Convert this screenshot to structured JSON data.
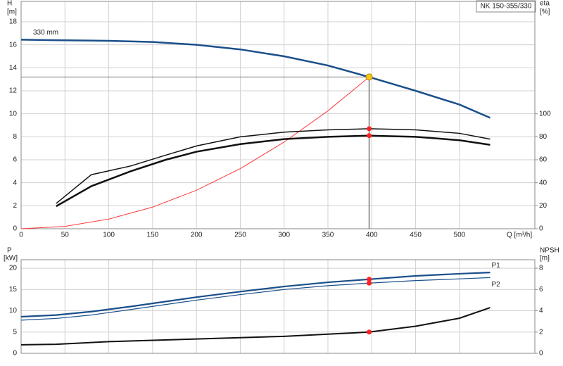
{
  "chart_data": [
    {
      "type": "line",
      "title": "NK 150-355/330",
      "xlabel": "Q [m³/h]",
      "ylabel": "H",
      "yunit": "[m]",
      "y2label": "eta",
      "y2unit": "[%]",
      "xlim": [
        0,
        586
      ],
      "xticks": [
        0,
        50,
        100,
        150,
        200,
        250,
        300,
        350,
        400,
        450,
        500
      ],
      "ylim": [
        0,
        18
      ],
      "yticks": [
        0,
        2,
        4,
        6,
        8,
        10,
        12,
        14,
        16,
        18
      ],
      "y2lim": [
        0,
        180
      ],
      "y2ticks": [
        0,
        20,
        40,
        60,
        80,
        100
      ],
      "grid": true,
      "duty_x": 397,
      "duty_color": "#f5c518",
      "series": [
        {
          "name": "330 mm",
          "color": "#1a4f8a",
          "width": 2.5,
          "x": [
            0,
            40,
            100,
            150,
            200,
            250,
            300,
            350,
            397,
            450,
            500,
            535
          ],
          "values": [
            16.45,
            16.4,
            16.35,
            16.25,
            16.0,
            15.6,
            15.0,
            14.2,
            13.2,
            12.0,
            10.8,
            9.65
          ],
          "duty_value": 13.2
        },
        {
          "color": "#ff3a3a",
          "width": 1,
          "x": [
            0,
            50,
            100,
            150,
            200,
            250,
            300,
            350,
            397
          ],
          "values": [
            0,
            0.21,
            0.84,
            1.88,
            3.35,
            5.23,
            7.54,
            10.26,
            13.2
          ]
        },
        {
          "color": "#111111",
          "width": 1.5,
          "axis": "y2",
          "x": [
            40,
            80,
            125,
            165,
            200,
            250,
            300,
            350,
            397,
            450,
            500,
            535
          ],
          "values": [
            22,
            47,
            54.6,
            64,
            72,
            80,
            84,
            86,
            87,
            86,
            83,
            78
          ],
          "duty_value": 87,
          "duty_color": "#ff2020"
        },
        {
          "color": "#111111",
          "width": 2.5,
          "axis": "y2",
          "x": [
            40,
            80,
            125,
            165,
            200,
            250,
            300,
            350,
            397,
            450,
            500,
            535
          ],
          "values": [
            19.6,
            37,
            50,
            60,
            67,
            73.6,
            78,
            80,
            81,
            80,
            77,
            73
          ],
          "duty_value": 81,
          "duty_color": "#ff2020"
        }
      ]
    },
    {
      "type": "line",
      "ylabel": "P",
      "yunit": "[kW]",
      "y2label": "NPSH",
      "y2unit": "[m]",
      "xlim": [
        0,
        586
      ],
      "ylim": [
        0,
        22
      ],
      "yticks": [
        0,
        5,
        10,
        15,
        20
      ],
      "y2lim": [
        0,
        8.8
      ],
      "y2ticks": [
        0,
        2,
        4,
        6,
        8
      ],
      "grid": true,
      "duty_x": 397,
      "series": [
        {
          "name": "P1",
          "color": "#1a4f8a",
          "width": 2.2,
          "x": [
            0,
            40,
            80,
            125,
            200,
            250,
            300,
            350,
            397,
            450,
            500,
            535
          ],
          "values": [
            8.6,
            9.0,
            9.8,
            11.0,
            13.2,
            14.5,
            15.7,
            16.7,
            17.4,
            18.2,
            18.7,
            19.0
          ],
          "duty_value": 17.4,
          "duty_color": "#ff2020"
        },
        {
          "name": "P2",
          "color": "#1a4f8a",
          "width": 1.2,
          "x": [
            0,
            40,
            80,
            125,
            200,
            250,
            300,
            350,
            397,
            450,
            500,
            535
          ],
          "values": [
            7.8,
            8.2,
            9.0,
            10.3,
            12.5,
            13.8,
            15.0,
            15.9,
            16.5,
            17.1,
            17.5,
            17.8
          ],
          "duty_value": 16.5,
          "duty_color": "#ff2020"
        },
        {
          "color": "#111111",
          "width": 2,
          "axis": "y2",
          "x": [
            0,
            40,
            100,
            200,
            300,
            350,
            397,
            450,
            500,
            535
          ],
          "values": [
            0.8,
            0.85,
            1.1,
            1.35,
            1.6,
            1.8,
            2.0,
            2.55,
            3.3,
            4.3
          ],
          "duty_value": 2.0,
          "duty_color": "#ff2020"
        }
      ]
    }
  ]
}
